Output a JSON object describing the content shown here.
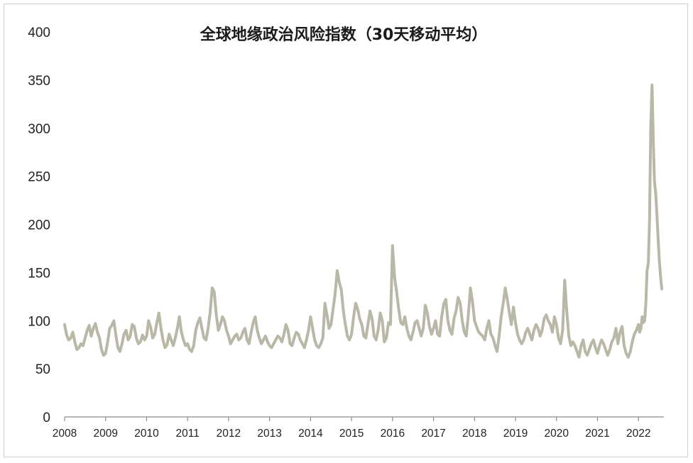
{
  "chart_data": {
    "type": "line",
    "title": "全球地缘政治风险指数（30天移动平均）",
    "xlabel": "",
    "ylabel": "",
    "xlim": [
      2008,
      2022.62
    ],
    "ylim": [
      0,
      400
    ],
    "yticks": [
      "0",
      "50",
      "100",
      "150",
      "200",
      "250",
      "300",
      "350",
      "400"
    ],
    "xticks": [
      "2008",
      "2009",
      "2010",
      "2011",
      "2012",
      "2013",
      "2014",
      "2015",
      "2016",
      "2017",
      "2018",
      "2019",
      "2020",
      "2021",
      "2022"
    ],
    "grid": false,
    "legend": "none",
    "series": [
      {
        "color": "#b9b8a6",
        "x": [
          2008.0,
          2008.05,
          2008.1,
          2008.15,
          2008.2,
          2008.25,
          2008.3,
          2008.35,
          2008.4,
          2008.45,
          2008.5,
          2008.55,
          2008.6,
          2008.65,
          2008.7,
          2008.75,
          2008.8,
          2008.85,
          2008.9,
          2008.95,
          2009.0,
          2009.05,
          2009.1,
          2009.15,
          2009.2,
          2009.25,
          2009.3,
          2009.35,
          2009.4,
          2009.45,
          2009.5,
          2009.55,
          2009.6,
          2009.65,
          2009.7,
          2009.75,
          2009.8,
          2009.85,
          2009.9,
          2009.95,
          2010.0,
          2010.05,
          2010.1,
          2010.15,
          2010.2,
          2010.25,
          2010.3,
          2010.35,
          2010.4,
          2010.45,
          2010.5,
          2010.55,
          2010.6,
          2010.65,
          2010.7,
          2010.75,
          2010.8,
          2010.85,
          2010.9,
          2010.95,
          2011.0,
          2011.05,
          2011.1,
          2011.15,
          2011.2,
          2011.25,
          2011.3,
          2011.35,
          2011.4,
          2011.45,
          2011.5,
          2011.55,
          2011.6,
          2011.65,
          2011.7,
          2011.75,
          2011.8,
          2011.85,
          2011.9,
          2011.95,
          2012.0,
          2012.05,
          2012.1,
          2012.15,
          2012.2,
          2012.25,
          2012.3,
          2012.35,
          2012.4,
          2012.45,
          2012.5,
          2012.55,
          2012.6,
          2012.65,
          2012.7,
          2012.75,
          2012.8,
          2012.85,
          2012.9,
          2012.95,
          2013.0,
          2013.05,
          2013.1,
          2013.15,
          2013.2,
          2013.25,
          2013.3,
          2013.35,
          2013.4,
          2013.45,
          2013.5,
          2013.55,
          2013.6,
          2013.65,
          2013.7,
          2013.75,
          2013.8,
          2013.85,
          2013.9,
          2013.95,
          2014.0,
          2014.05,
          2014.1,
          2014.15,
          2014.2,
          2014.25,
          2014.3,
          2014.35,
          2014.4,
          2014.45,
          2014.5,
          2014.55,
          2014.6,
          2014.65,
          2014.7,
          2014.75,
          2014.8,
          2014.85,
          2014.9,
          2014.95,
          2015.0,
          2015.05,
          2015.1,
          2015.15,
          2015.2,
          2015.25,
          2015.3,
          2015.35,
          2015.4,
          2015.45,
          2015.5,
          2015.55,
          2015.6,
          2015.65,
          2015.7,
          2015.75,
          2015.8,
          2015.85,
          2015.9,
          2015.95,
          2016.0,
          2016.05,
          2016.1,
          2016.15,
          2016.2,
          2016.25,
          2016.3,
          2016.35,
          2016.4,
          2016.45,
          2016.5,
          2016.55,
          2016.6,
          2016.65,
          2016.7,
          2016.75,
          2016.8,
          2016.85,
          2016.9,
          2016.95,
          2017.0,
          2017.05,
          2017.1,
          2017.15,
          2017.2,
          2017.25,
          2017.3,
          2017.35,
          2017.4,
          2017.45,
          2017.5,
          2017.55,
          2017.6,
          2017.65,
          2017.7,
          2017.75,
          2017.8,
          2017.85,
          2017.9,
          2017.95,
          2018.0,
          2018.05,
          2018.1,
          2018.15,
          2018.2,
          2018.25,
          2018.3,
          2018.35,
          2018.4,
          2018.45,
          2018.5,
          2018.55,
          2018.6,
          2018.65,
          2018.7,
          2018.75,
          2018.8,
          2018.85,
          2018.9,
          2018.95,
          2019.0,
          2019.05,
          2019.1,
          2019.15,
          2019.2,
          2019.25,
          2019.3,
          2019.35,
          2019.4,
          2019.45,
          2019.5,
          2019.55,
          2019.6,
          2019.65,
          2019.7,
          2019.75,
          2019.8,
          2019.85,
          2019.9,
          2019.95,
          2020.0,
          2020.05,
          2020.1,
          2020.15,
          2020.2,
          2020.25,
          2020.3,
          2020.35,
          2020.4,
          2020.45,
          2020.5,
          2020.55,
          2020.6,
          2020.65,
          2020.7,
          2020.75,
          2020.8,
          2020.85,
          2020.9,
          2020.95,
          2021.0,
          2021.05,
          2021.1,
          2021.15,
          2021.2,
          2021.25,
          2021.3,
          2021.35,
          2021.4,
          2021.45,
          2021.5,
          2021.55,
          2021.6,
          2021.65,
          2021.7,
          2021.75,
          2021.8,
          2021.85,
          2021.9,
          2021.95,
          2022.0,
          2022.03,
          2022.06,
          2022.09,
          2022.12,
          2022.15,
          2022.18,
          2022.21,
          2022.24,
          2022.27,
          2022.3,
          2022.33,
          2022.36,
          2022.39,
          2022.42,
          2022.45,
          2022.48,
          2022.51,
          2022.54,
          2022.57
        ],
        "y": [
          96,
          85,
          80,
          82,
          88,
          78,
          70,
          72,
          76,
          74,
          82,
          90,
          95,
          84,
          92,
          97,
          88,
          82,
          70,
          64,
          66,
          78,
          92,
          95,
          100,
          85,
          72,
          68,
          76,
          86,
          90,
          80,
          84,
          96,
          94,
          82,
          76,
          78,
          85,
          80,
          84,
          100,
          93,
          82,
          86,
          98,
          108,
          92,
          80,
          72,
          75,
          86,
          80,
          74,
          82,
          92,
          104,
          88,
          80,
          74,
          76,
          70,
          68,
          74,
          90,
          98,
          103,
          92,
          82,
          80,
          92,
          108,
          134,
          130,
          106,
          90,
          96,
          104,
          100,
          90,
          84,
          76,
          80,
          84,
          86,
          80,
          82,
          88,
          92,
          80,
          76,
          88,
          98,
          104,
          90,
          82,
          76,
          80,
          84,
          78,
          74,
          72,
          76,
          80,
          84,
          82,
          78,
          86,
          96,
          90,
          76,
          74,
          82,
          88,
          86,
          80,
          76,
          72,
          80,
          90,
          104,
          92,
          80,
          74,
          72,
          76,
          82,
          118,
          106,
          92,
          96,
          112,
          128,
          152,
          140,
          132,
          110,
          96,
          84,
          80,
          86,
          104,
          118,
          112,
          102,
          96,
          84,
          82,
          96,
          110,
          102,
          84,
          80,
          90,
          108,
          100,
          78,
          82,
          98,
          96,
          178,
          145,
          130,
          112,
          98,
          96,
          104,
          92,
          84,
          80,
          88,
          98,
          100,
          92,
          84,
          92,
          116,
          108,
          94,
          86,
          92,
          100,
          86,
          84,
          104,
          118,
          122,
          100,
          90,
          86,
          102,
          110,
          124,
          118,
          100,
          88,
          84,
          106,
          134,
          120,
          100,
          94,
          88,
          86,
          84,
          80,
          92,
          100,
          86,
          82,
          74,
          68,
          84,
          104,
          118,
          134,
          122,
          108,
          96,
          114,
          98,
          86,
          80,
          76,
          80,
          88,
          92,
          86,
          80,
          90,
          96,
          92,
          84,
          90,
          102,
          106,
          100,
          96,
          88,
          104,
          96,
          82,
          76,
          90,
          142,
          110,
          84,
          74,
          78,
          74,
          68,
          62,
          74,
          80,
          68,
          64,
          70,
          76,
          80,
          72,
          66,
          74,
          80,
          76,
          70,
          64,
          70,
          78,
          82,
          92,
          76,
          88,
          94,
          74,
          66,
          62,
          68,
          78,
          86,
          90,
          96,
          88,
          92,
          104,
          98,
          100,
          118,
          152,
          160,
          205,
          300,
          345,
          290,
          245,
          232,
          210,
          185,
          162,
          145,
          133
        ]
      }
    ]
  }
}
